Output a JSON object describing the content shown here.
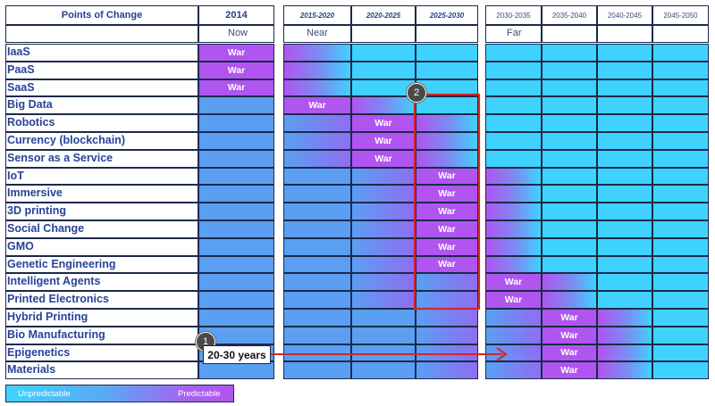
{
  "chart_data": {
    "type": "table",
    "title": "",
    "header_label": "Points of Change",
    "columns": [
      {
        "label": "2014",
        "group": "Now"
      },
      {
        "label": "2015-2020",
        "group": "Near"
      },
      {
        "label": "2020-2025",
        "group": "Near"
      },
      {
        "label": "2025-2030",
        "group": "Near"
      },
      {
        "label": "2030-2035",
        "group": "Far"
      },
      {
        "label": "2035-2040",
        "group": "Far"
      },
      {
        "label": "2040-2045",
        "group": "Far"
      },
      {
        "label": "2045-2050",
        "group": "Far"
      }
    ],
    "groups": [
      "Now",
      "Near",
      "Far"
    ],
    "war_label": "War",
    "rows": [
      {
        "label": "IaaS",
        "war_column": 0
      },
      {
        "label": "PaaS",
        "war_column": 0
      },
      {
        "label": "SaaS",
        "war_column": 0
      },
      {
        "label": "Big Data",
        "war_column": 1
      },
      {
        "label": "Robotics",
        "war_column": 2
      },
      {
        "label": "Currency (blockchain)",
        "war_column": 2
      },
      {
        "label": "Sensor as a Service",
        "war_column": 2
      },
      {
        "label": "IoT",
        "war_column": 3
      },
      {
        "label": "Immersive",
        "war_column": 3
      },
      {
        "label": "3D printing",
        "war_column": 3
      },
      {
        "label": "Social Change",
        "war_column": 3
      },
      {
        "label": "GMO",
        "war_column": 3
      },
      {
        "label": "Genetic Engineering",
        "war_column": 3
      },
      {
        "label": "Intelligent Agents",
        "war_column": 4
      },
      {
        "label": "Printed Electronics",
        "war_column": 4
      },
      {
        "label": "Hybrid Printing",
        "war_column": 5
      },
      {
        "label": "Bio Manufacturing",
        "war_column": 5
      },
      {
        "label": "Epigenetics",
        "war_column": 5
      },
      {
        "label": "Materials",
        "war_column": 5
      }
    ],
    "legend": {
      "low": "Unpredictable",
      "high": "Predictable"
    },
    "annotations": [
      {
        "badge": "1",
        "text": "20-30 years"
      },
      {
        "badge": "2",
        "text": ""
      }
    ]
  },
  "colors": {
    "predictable": "#b055f0",
    "unpredictable": "#3fd2ff",
    "mid": "#5a9ff2",
    "grid": "#1b2a4a",
    "label": "#26439a",
    "annotation_red": "#d02828"
  }
}
